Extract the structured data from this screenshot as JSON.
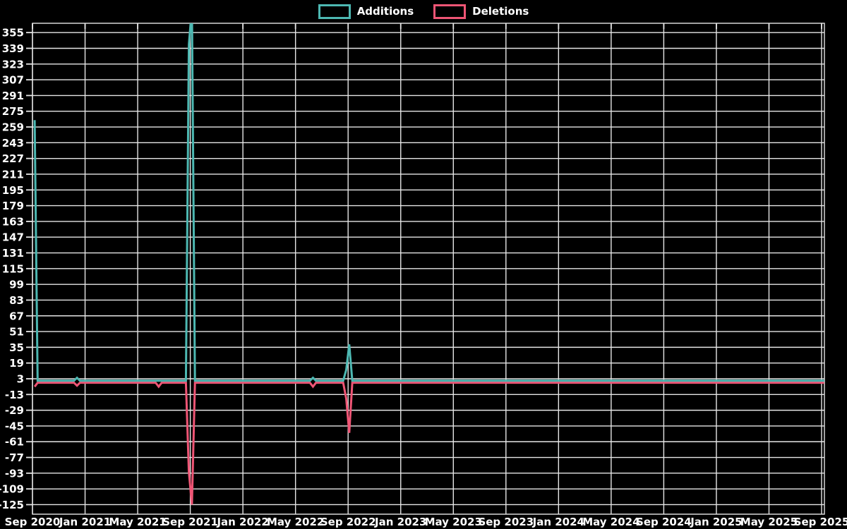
{
  "chart_data": {
    "type": "line",
    "title": "",
    "legend_position": "top-center",
    "grid": true,
    "background_color": "#000000",
    "grid_color": "#e6e6e6",
    "text_color": "#ffffff",
    "x_axis": {
      "labels": [
        "Sep 2020",
        "Jan 2021",
        "May 2021",
        "Sep 2021",
        "Jan 2022",
        "May 2022",
        "Sep 2022",
        "Jan 2023",
        "May 2023",
        "Sep 2023",
        "Jan 2024",
        "May 2024",
        "Sep 2024",
        "Jan 2025",
        "May 2025",
        "Sep 2025"
      ],
      "start": "2020-09-01",
      "end": "2025-09-01"
    },
    "y_axis": {
      "min": -125,
      "max": 355,
      "step": 16,
      "tick_labels": [
        355,
        339,
        323,
        307,
        291,
        275,
        259,
        243,
        227,
        211,
        195,
        179,
        163,
        147,
        131,
        115,
        99,
        83,
        67,
        51,
        35,
        19,
        3,
        -13,
        -29,
        -45,
        -61,
        -77,
        -93,
        -109,
        -125
      ]
    },
    "series": [
      {
        "name": "Additions",
        "color": "#4db8b2",
        "baseline": 1,
        "points": [
          {
            "date": "2020-09-06",
            "value": 266
          },
          {
            "date": "2020-09-13",
            "value": 1
          },
          {
            "date": "2020-12-06",
            "value": 1
          },
          {
            "date": "2020-12-13",
            "value": 4
          },
          {
            "date": "2020-12-20",
            "value": 1
          },
          {
            "date": "2021-08-22",
            "value": 1
          },
          {
            "date": "2021-08-29",
            "value": 343
          },
          {
            "date": "2021-09-05",
            "value": 380
          },
          {
            "date": "2021-09-12",
            "value": 1
          },
          {
            "date": "2022-06-05",
            "value": 1
          },
          {
            "date": "2022-06-12",
            "value": 4
          },
          {
            "date": "2022-06-19",
            "value": 1
          },
          {
            "date": "2022-08-21",
            "value": 1
          },
          {
            "date": "2022-08-28",
            "value": 12
          },
          {
            "date": "2022-09-04",
            "value": 38
          },
          {
            "date": "2022-09-11",
            "value": 1
          },
          {
            "date": "2025-09-07",
            "value": 1
          }
        ],
        "peak_clipped_above_axis": true
      },
      {
        "name": "Deletions",
        "color": "#ef5575",
        "baseline": -1,
        "points": [
          {
            "date": "2020-09-06",
            "value": -5
          },
          {
            "date": "2020-09-13",
            "value": -1
          },
          {
            "date": "2020-12-06",
            "value": -1
          },
          {
            "date": "2020-12-13",
            "value": -4
          },
          {
            "date": "2020-12-20",
            "value": -1
          },
          {
            "date": "2021-06-13",
            "value": -1
          },
          {
            "date": "2021-06-20",
            "value": -5
          },
          {
            "date": "2021-06-27",
            "value": -1
          },
          {
            "date": "2021-08-22",
            "value": -1
          },
          {
            "date": "2021-08-29",
            "value": -92
          },
          {
            "date": "2021-09-05",
            "value": -125
          },
          {
            "date": "2021-09-12",
            "value": -1
          },
          {
            "date": "2022-06-05",
            "value": -1
          },
          {
            "date": "2022-06-12",
            "value": -5
          },
          {
            "date": "2022-06-19",
            "value": -1
          },
          {
            "date": "2022-08-21",
            "value": -1
          },
          {
            "date": "2022-08-28",
            "value": -17
          },
          {
            "date": "2022-09-04",
            "value": -52
          },
          {
            "date": "2022-09-11",
            "value": -1
          },
          {
            "date": "2025-09-07",
            "value": -1
          }
        ]
      }
    ]
  }
}
